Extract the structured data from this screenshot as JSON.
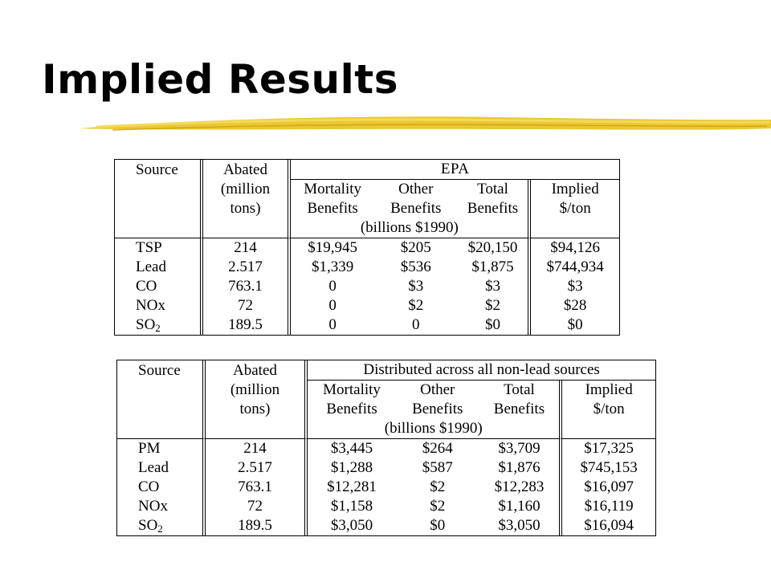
{
  "slide": {
    "title": "Implied Results",
    "accent_color": "#e8c21c"
  },
  "table_epa": {
    "headers": {
      "source": "Source",
      "abated_1": "Abated",
      "abated_2": "(million",
      "abated_3": "tons)",
      "group": "EPA",
      "mortality_1": "Mortality",
      "mortality_2": "Benefits",
      "other_1": "Other",
      "other_2": "Benefits",
      "total_1": "Total",
      "total_2": "Benefits",
      "implied_1": "Implied",
      "implied_2": "$/ton",
      "units": "(billions $1990)"
    },
    "rows": [
      {
        "source": "TSP",
        "abated": "214",
        "mortality": "$19,945",
        "other": "$205",
        "total": "$20,150",
        "implied": "$94,126"
      },
      {
        "source": "Lead",
        "abated": "2.517",
        "mortality": "$1,339",
        "other": "$536",
        "total": "$1,875",
        "implied": "$744,934"
      },
      {
        "source": "CO",
        "abated": "763.1",
        "mortality": "0",
        "other": "$3",
        "total": "$3",
        "implied": "$3"
      },
      {
        "source": "NOx",
        "abated": "72",
        "mortality": "0",
        "other": "$2",
        "total": "$2",
        "implied": "$28"
      },
      {
        "source": "SO",
        "source_sub": "2",
        "abated": "189.5",
        "mortality": "0",
        "other": "0",
        "total": "$0",
        "implied": "$0"
      }
    ]
  },
  "table_dist": {
    "headers": {
      "source": "Source",
      "abated_1": "Abated",
      "abated_2": "(million",
      "abated_3": "tons)",
      "group": "Distributed across all non-lead sources",
      "mortality_1": "Mortality",
      "mortality_2": "Benefits",
      "other_1": "Other",
      "other_2": "Benefits",
      "total_1": "Total",
      "total_2": "Benefits",
      "implied_1": "Implied",
      "implied_2": "$/ton",
      "units": "(billions $1990)"
    },
    "rows": [
      {
        "source": "PM",
        "abated": "214",
        "mortality": "$3,445",
        "other": "$264",
        "total": "$3,709",
        "implied": "$17,325"
      },
      {
        "source": "Lead",
        "abated": "2.517",
        "mortality": "$1,288",
        "other": "$587",
        "total": "$1,876",
        "implied": "$745,153"
      },
      {
        "source": "CO",
        "abated": "763.1",
        "mortality": "$12,281",
        "other": "$2",
        "total": "$12,283",
        "implied": "$16,097"
      },
      {
        "source": "NOx",
        "abated": "72",
        "mortality": "$1,158",
        "other": "$2",
        "total": "$1,160",
        "implied": "$16,119"
      },
      {
        "source": "SO",
        "source_sub": "2",
        "abated": "189.5",
        "mortality": "$3,050",
        "other": "$0",
        "total": "$3,050",
        "implied": "$16,094"
      }
    ]
  }
}
